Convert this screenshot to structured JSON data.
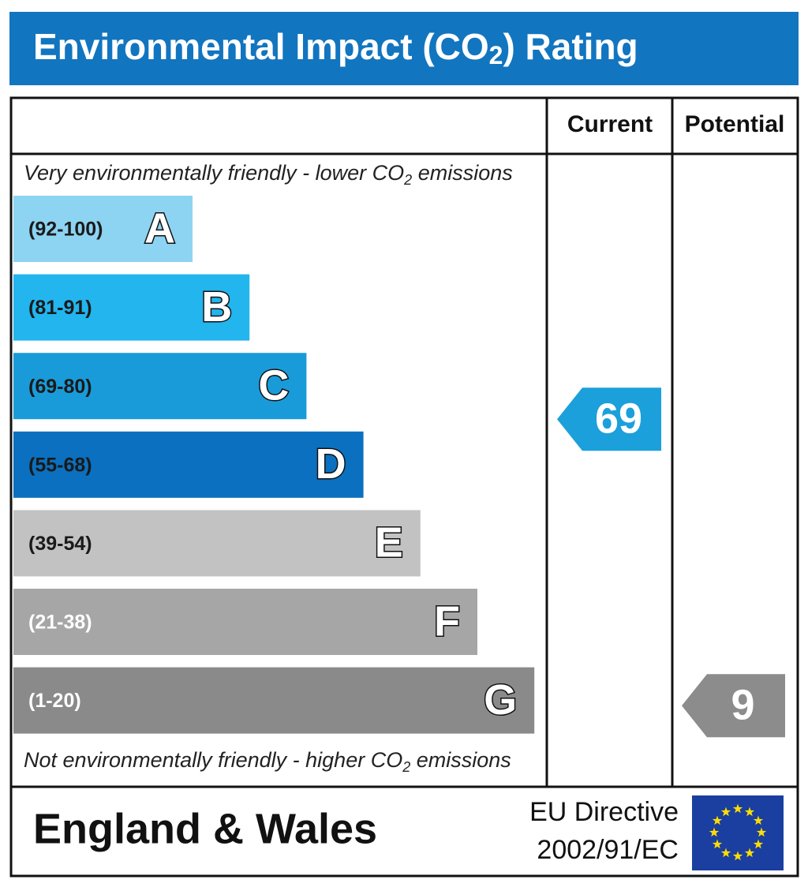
{
  "title": [
    "Environmental Impact (CO",
    "2",
    ") Rating"
  ],
  "columns": {
    "current": "Current",
    "potential": "Potential"
  },
  "top_note": [
    "Very environmentally friendly - lower CO",
    "2",
    " emissions"
  ],
  "bottom_note": [
    "Not environmentally friendly - higher CO",
    "2",
    " emissions"
  ],
  "bands": [
    {
      "range": "(92-100)",
      "letter": "A",
      "color": "#8dd3f2",
      "text_color": "#1a1a1a"
    },
    {
      "range": "(81-91)",
      "letter": "B",
      "color": "#22b5ee",
      "text_color": "#1a1a1a"
    },
    {
      "range": "(69-80)",
      "letter": "C",
      "color": "#1a9bd9",
      "text_color": "#1a1a1a"
    },
    {
      "range": "(55-68)",
      "letter": "D",
      "color": "#0b70bf",
      "text_color": "#1a1a1a"
    },
    {
      "range": "(39-54)",
      "letter": "E",
      "color": "#c2c2c2",
      "text_color": "#1a1a1a"
    },
    {
      "range": "(21-38)",
      "letter": "F",
      "color": "#a6a6a6",
      "text_color": "#ffffff"
    },
    {
      "range": "(1-20)",
      "letter": "G",
      "color": "#8a8a8a",
      "text_color": "#ffffff"
    }
  ],
  "current": {
    "value": 69,
    "color": "#1ca0db"
  },
  "potential": {
    "value": 9,
    "color": "#8c8c8c"
  },
  "footer": {
    "region": "England & Wales",
    "directive": [
      "EU Directive",
      "2002/91/EC"
    ]
  }
}
